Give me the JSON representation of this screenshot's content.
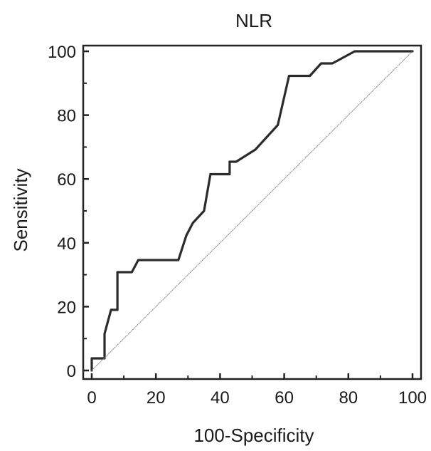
{
  "chart_data": {
    "type": "line",
    "title": "NLR",
    "xlabel": "100-Specificity",
    "ylabel": "Sensitivity",
    "xlim": [
      0,
      100
    ],
    "ylim": [
      0,
      100
    ],
    "xticks": [
      "0",
      "20",
      "40",
      "60",
      "80",
      "100"
    ],
    "yticks": [
      "0",
      "20",
      "40",
      "60",
      "80",
      "100"
    ],
    "grid": false,
    "series": [
      {
        "style": "solid",
        "color": "#2b2b2b",
        "points": [
          [
            0,
            0
          ],
          [
            0,
            3.8
          ],
          [
            4,
            3.8
          ],
          [
            4,
            11.5
          ],
          [
            6,
            19
          ],
          [
            8,
            19
          ],
          [
            8,
            30.8
          ],
          [
            12.5,
            30.8
          ],
          [
            14.5,
            34.6
          ],
          [
            27,
            34.6
          ],
          [
            29.5,
            42.3
          ],
          [
            31.5,
            46.2
          ],
          [
            35,
            50
          ],
          [
            37,
            61.5
          ],
          [
            43,
            61.5
          ],
          [
            43,
            65.4
          ],
          [
            45,
            65.4
          ],
          [
            51,
            69.2
          ],
          [
            58,
            76.9
          ],
          [
            61.5,
            92.3
          ],
          [
            68,
            92.3
          ],
          [
            71.5,
            96.2
          ],
          [
            75,
            96.2
          ],
          [
            82,
            100
          ],
          [
            100,
            100
          ]
        ]
      },
      {
        "style": "dotted-reference",
        "color": "#8a8a8a",
        "points": [
          [
            0,
            0
          ],
          [
            100,
            100
          ]
        ]
      }
    ]
  }
}
